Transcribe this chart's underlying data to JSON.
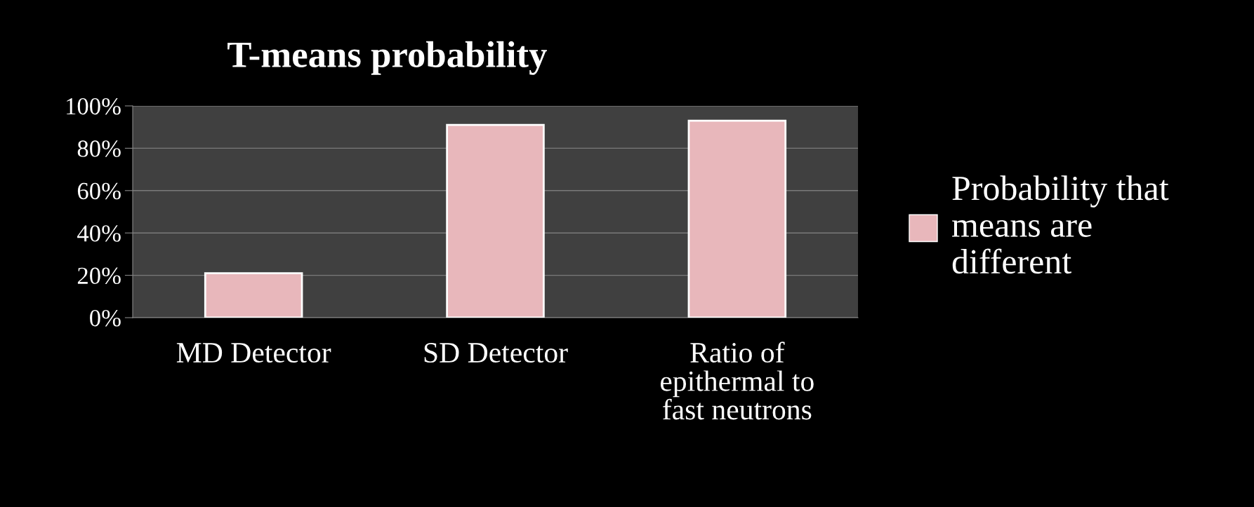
{
  "chart_data": {
    "type": "bar",
    "title": "T-means probability",
    "categories": [
      "MD Detector",
      "SD Detector",
      "Ratio of epithermal to fast neutrons"
    ],
    "series": [
      {
        "name": "Probability that means are different",
        "color": "#e8b7bb",
        "values": [
          21,
          91,
          93
        ]
      }
    ],
    "ylim": [
      0,
      100
    ],
    "yticks": [
      {
        "value": 0,
        "label": "0%"
      },
      {
        "value": 20,
        "label": "20%"
      },
      {
        "value": 40,
        "label": "40%"
      },
      {
        "value": 60,
        "label": "60%"
      },
      {
        "value": 80,
        "label": "80%"
      },
      {
        "value": 100,
        "label": "100%"
      }
    ],
    "grid": "y",
    "legend": "right"
  }
}
